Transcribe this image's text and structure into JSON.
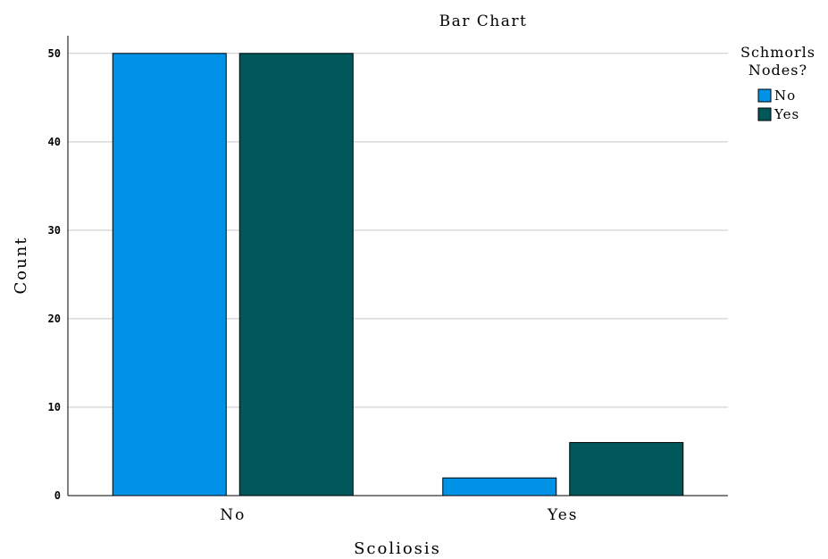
{
  "chart_data": {
    "type": "bar",
    "title": "Bar Chart",
    "xlabel": "Scoliosis",
    "ylabel": "Count",
    "categories": [
      "No",
      "Yes"
    ],
    "series": [
      {
        "name": "No",
        "values": [
          50,
          2
        ],
        "color": "#0092e6"
      },
      {
        "name": "Yes",
        "values": [
          50,
          6
        ],
        "color": "#00585b"
      }
    ],
    "ylim": [
      0,
      52
    ],
    "yticks": [
      0,
      10,
      20,
      30,
      40,
      50
    ],
    "grid": true,
    "legend": {
      "title_lines": [
        "Schmorls",
        "Nodes?"
      ],
      "placement": "top-right"
    }
  }
}
